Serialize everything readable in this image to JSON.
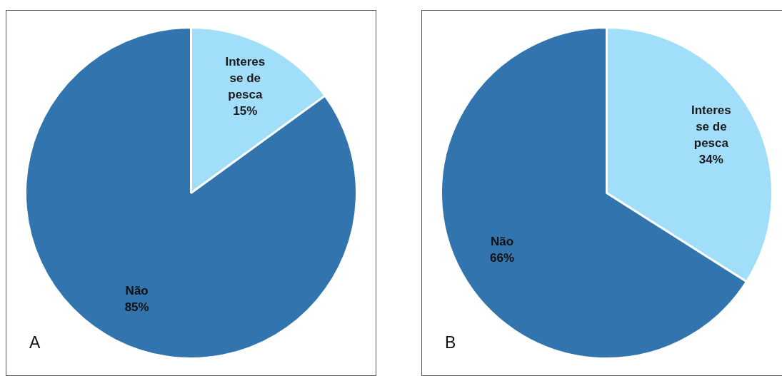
{
  "chart_data": [
    {
      "type": "pie",
      "title": "A",
      "categories": [
        "Interes se de pesca",
        "Não"
      ],
      "values": [
        15,
        85
      ],
      "value_labels": [
        "15%",
        "85%"
      ],
      "colors": [
        "#a0defa",
        "#3274ad"
      ],
      "legend": false
    },
    {
      "type": "pie",
      "title": "B",
      "categories": [
        "Interes se de pesca",
        "Não"
      ],
      "values": [
        34,
        66
      ],
      "value_labels": [
        "34%",
        "66%"
      ],
      "colors": [
        "#a0defa",
        "#3274ad"
      ],
      "legend": false
    }
  ]
}
